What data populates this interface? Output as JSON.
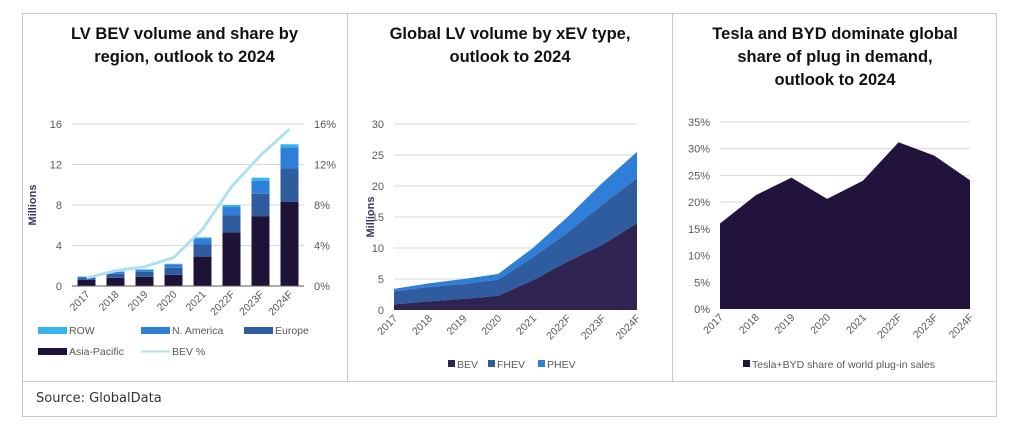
{
  "source": "Source: GlobalData",
  "colors": {
    "asia_pacific": "#1f1237",
    "europe": "#2e5c9e",
    "n_america": "#2f7ed8",
    "row": "#33b5f0",
    "bev_pct": "#aee0f2",
    "bev": "#2f2352",
    "fhev": "#2e5c9e",
    "phev": "#2f7ed8",
    "tesla_byd": "#21133b",
    "grid": "#d9d9d9",
    "axis_text": "#595959"
  },
  "chart_data": [
    {
      "type": "bar",
      "subtype": "stacked-bar-with-line",
      "title": "LV BEV volume and share  by region, outlook to 2024",
      "title_lines": [
        "LV BEV volume and share  by",
        "region, outlook to 2024"
      ],
      "ylabel": "Millions",
      "y2label": "",
      "categories": [
        "2017",
        "2018",
        "2019",
        "2020",
        "2021",
        "2022F",
        "2023F",
        "2024F"
      ],
      "ylim": [
        0,
        16
      ],
      "yticks": [
        "0",
        "4",
        "8",
        "12",
        "16"
      ],
      "y2lim": [
        0,
        16
      ],
      "y2ticks": [
        "0%",
        "4%",
        "8%",
        "12%",
        "16%"
      ],
      "grid": true,
      "legend_position": "bottom",
      "series": [
        {
          "name": "Asia-Pacific",
          "kind": "bar",
          "values": [
            0.6,
            0.8,
            0.9,
            1.1,
            2.9,
            5.3,
            6.9,
            8.3
          ]
        },
        {
          "name": "Europe",
          "kind": "bar",
          "values": [
            0.2,
            0.4,
            0.5,
            0.7,
            1.2,
            1.7,
            2.2,
            3.3
          ]
        },
        {
          "name": "N. America",
          "kind": "bar",
          "values": [
            0.1,
            0.2,
            0.2,
            0.35,
            0.6,
            0.8,
            1.3,
            2.1
          ]
        },
        {
          "name": "ROW",
          "kind": "bar",
          "values": [
            0.05,
            0.05,
            0.05,
            0.05,
            0.1,
            0.2,
            0.3,
            0.3
          ]
        },
        {
          "name": "BEV %",
          "kind": "line",
          "axis": "secondary",
          "values": [
            0.8,
            1.5,
            1.9,
            2.8,
            5.6,
            9.8,
            12.9,
            15.5
          ]
        }
      ],
      "legend": [
        "ROW",
        "N. America",
        "Europe",
        "Asia-Pacific",
        "BEV %"
      ]
    },
    {
      "type": "area",
      "subtype": "stacked-area",
      "title": "Global LV volume by xEV type, outlook to 2024",
      "title_lines": [
        "Global LV volume by xEV type,",
        "outlook to 2024"
      ],
      "ylabel": "Millions",
      "categories": [
        "2017",
        "2018",
        "2019",
        "2020",
        "2021",
        "2022F",
        "2023F",
        "2024F"
      ],
      "ylim": [
        0,
        30
      ],
      "yticks": [
        "0",
        "5",
        "10",
        "15",
        "20",
        "25",
        "30"
      ],
      "grid": true,
      "legend_position": "bottom",
      "series": [
        {
          "name": "BEV",
          "values": [
            0.9,
            1.4,
            1.8,
            2.3,
            4.8,
            7.8,
            10.5,
            14.0
          ]
        },
        {
          "name": "FHEV",
          "values": [
            2.1,
            2.3,
            2.4,
            2.6,
            3.7,
            4.7,
            6.5,
            7.3
          ]
        },
        {
          "name": "PHEV",
          "values": [
            0.4,
            0.6,
            0.8,
            0.9,
            1.5,
            2.5,
            3.5,
            4.2
          ]
        }
      ],
      "legend": [
        "BEV",
        "FHEV",
        "PHEV"
      ]
    },
    {
      "type": "area",
      "title": "Tesla and BYD dominate global share of plug in demand, outlook to 2024",
      "title_lines": [
        "Tesla and BYD dominate global",
        "share of plug in demand,",
        "outlook to 2024"
      ],
      "ylabel": "",
      "categories": [
        "2017",
        "2018",
        "2019",
        "2020",
        "2021",
        "2022F",
        "2023F",
        "2024F"
      ],
      "ylim": [
        0,
        35
      ],
      "yticks": [
        "0%",
        "5%",
        "10%",
        "15%",
        "20%",
        "25%",
        "30%",
        "35%"
      ],
      "grid": true,
      "legend_position": "bottom",
      "series": [
        {
          "name": "Tesla+BYD share of world plug-in sales",
          "values": [
            16.0,
            21.3,
            24.6,
            20.6,
            24.0,
            31.2,
            28.7,
            24.1
          ]
        }
      ],
      "legend": [
        "Tesla+BYD share of world plug-in sales"
      ]
    }
  ]
}
